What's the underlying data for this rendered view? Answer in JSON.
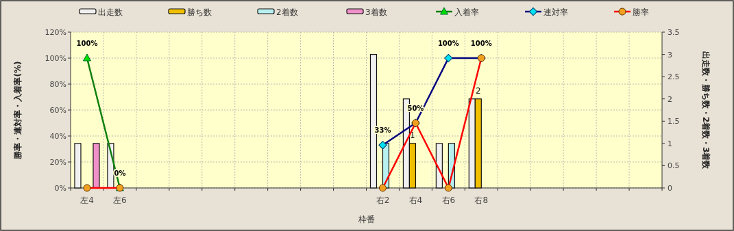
{
  "chart_data": {
    "type": "bar",
    "xlabel": "枠番",
    "ylabel": "勝率・連対率・入着率(%)",
    "y2label": "出走数・勝ち数・2着数・3着数",
    "categories": [
      "左4",
      "左6",
      null,
      null,
      null,
      null,
      null,
      null,
      null,
      "右2",
      "右4",
      "右6",
      "右8",
      null,
      null,
      null,
      null,
      null
    ],
    "series": [
      {
        "name": "出走数",
        "axis": "y2",
        "color": "#f0f0f0",
        "values": [
          1,
          1,
          null,
          null,
          null,
          null,
          null,
          null,
          null,
          3,
          2,
          1,
          2,
          null,
          null,
          null,
          null,
          null
        ]
      },
      {
        "name": "勝ち数",
        "axis": "y2",
        "color": "#f0c000",
        "values": [
          null,
          null,
          null,
          null,
          null,
          null,
          null,
          null,
          null,
          null,
          1,
          null,
          2,
          null,
          null,
          null,
          null,
          null
        ],
        "value_labels": [
          null,
          null,
          null,
          null,
          null,
          null,
          null,
          null,
          null,
          null,
          "1",
          null,
          "2",
          null,
          null,
          null,
          null,
          null
        ]
      },
      {
        "name": "2着数",
        "axis": "y2",
        "color": "#b8f0f0",
        "values": [
          null,
          null,
          null,
          null,
          null,
          null,
          null,
          null,
          null,
          1,
          null,
          1,
          null,
          null,
          null,
          null,
          null,
          null
        ]
      },
      {
        "name": "3着数",
        "axis": "y2",
        "color": "#f090c8",
        "values": [
          1,
          null,
          null,
          null,
          null,
          null,
          null,
          null,
          null,
          null,
          null,
          null,
          null,
          null,
          null,
          null,
          null,
          null
        ]
      },
      {
        "name": "入着率",
        "type": "line",
        "color": "#108010",
        "marker": "triangle",
        "values": [
          100,
          0,
          null,
          null,
          null,
          null,
          null,
          null,
          null,
          null,
          null,
          null,
          null,
          null,
          null,
          null,
          null,
          null
        ],
        "value_labels": [
          "100%",
          "0%",
          null,
          null,
          null,
          null,
          null,
          null,
          null,
          null,
          null,
          null,
          null,
          null,
          null,
          null,
          null,
          null
        ]
      },
      {
        "name": "連対率",
        "type": "line",
        "color": "#000080",
        "marker": "diamond",
        "values": [
          null,
          null,
          null,
          null,
          null,
          null,
          null,
          null,
          null,
          33,
          50,
          100,
          100,
          null,
          null,
          null,
          null,
          null
        ],
        "value_labels": [
          null,
          null,
          null,
          null,
          null,
          null,
          null,
          null,
          null,
          "33%",
          "50%",
          "100%",
          "100%",
          null,
          null,
          null,
          null,
          null
        ]
      },
      {
        "name": "勝率",
        "type": "line",
        "color": "#ff0000",
        "marker": "circle",
        "values": [
          0,
          0,
          null,
          null,
          null,
          null,
          null,
          null,
          null,
          0,
          50,
          0,
          100,
          null,
          null,
          null,
          null,
          null
        ]
      }
    ],
    "ylim": [
      0,
      120
    ],
    "yticks": [
      {
        "value": 0,
        "label": "0%"
      },
      {
        "value": 20,
        "label": "20%"
      },
      {
        "value": 40,
        "label": "40%"
      },
      {
        "value": 60,
        "label": "60%"
      },
      {
        "value": 80,
        "label": "80%"
      },
      {
        "value": 100,
        "label": "100%"
      },
      {
        "value": 120,
        "label": "120%"
      }
    ],
    "y2lim": [
      0,
      3.5
    ],
    "y2ticks": [
      0,
      0.5,
      1,
      1.5,
      2,
      2.5,
      3,
      3.5
    ],
    "grid": true,
    "legend": "top"
  }
}
